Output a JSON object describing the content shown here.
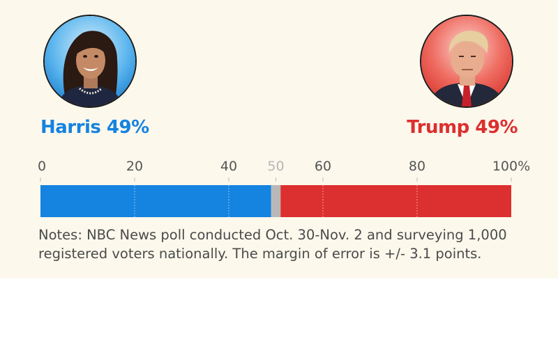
{
  "candidates": {
    "harris": {
      "label": "Harris 49%",
      "color": "#1583e0"
    },
    "trump": {
      "label": "Trump 49%",
      "color": "#dc2f2f"
    }
  },
  "notes": {
    "line1": "Notes: NBC News poll conducted Oct. 30-Nov. 2 and surveying 1,000",
    "line2": "registered voters nationally. The margin of error is +/- 3.1 points."
  },
  "chart_data": {
    "type": "bar",
    "orientation": "horizontal-stacked",
    "xlim": [
      0,
      100
    ],
    "ticks": [
      {
        "value": 0,
        "label": "0",
        "color": "#555555"
      },
      {
        "value": 20,
        "label": "20",
        "color": "#555555"
      },
      {
        "value": 40,
        "label": "40",
        "color": "#555555"
      },
      {
        "value": 50,
        "label": "50",
        "color": "#b5b5b5"
      },
      {
        "value": 60,
        "label": "60",
        "color": "#555555"
      },
      {
        "value": 80,
        "label": "80",
        "color": "#555555"
      },
      {
        "value": 100,
        "label": "100%",
        "color": "#555555"
      }
    ],
    "segments": [
      {
        "value": 49,
        "color": "#1583e0"
      },
      {
        "value": 2,
        "color": "#b8b8b8"
      },
      {
        "value": 49,
        "color": "#dc2f2f"
      }
    ],
    "gridlines": [
      20,
      40,
      60,
      80
    ]
  }
}
